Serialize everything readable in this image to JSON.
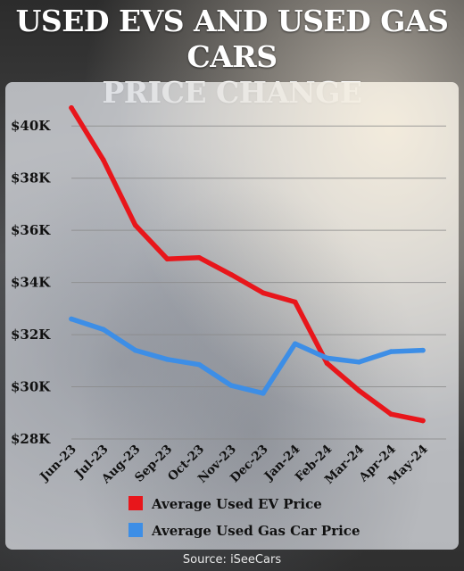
{
  "title": {
    "line1": "USED EVS AND USED GAS CARS",
    "line2": "PRICE CHANGE"
  },
  "source": "Source: iSeeCars",
  "colors": {
    "ev": "#e8161b",
    "gas": "#3d8ee6",
    "grid": "#8a8a8a"
  },
  "chart_data": {
    "type": "line",
    "title": "USED EVS AND USED GAS CARS PRICE CHANGE",
    "xlabel": "",
    "ylabel": "",
    "categories": [
      "Jun-23",
      "Jul-23",
      "Aug-23",
      "Sep-23",
      "Oct-23",
      "Nov-23",
      "Dec-23",
      "Jan-24",
      "Feb-24",
      "Mar-24",
      "Apr-24",
      "May-24"
    ],
    "ylim": [
      28000,
      41000
    ],
    "yticks": [
      28000,
      30000,
      32000,
      34000,
      36000,
      38000,
      40000
    ],
    "ytick_labels": [
      "$28K",
      "$30K",
      "$32K",
      "$34K",
      "$36K",
      "$38K",
      "$40K"
    ],
    "grid": true,
    "legend_position": "bottom",
    "series": [
      {
        "name": "Average Used EV Price",
        "color": "#e8161b",
        "values": [
          40700,
          38700,
          36200,
          34900,
          34950,
          34300,
          33600,
          33250,
          30900,
          29850,
          28950,
          28700
        ]
      },
      {
        "name": "Average Used Gas Car Price",
        "color": "#3d8ee6",
        "values": [
          32600,
          32200,
          31400,
          31050,
          30850,
          30050,
          29750,
          31650,
          31100,
          30950,
          31350,
          31400
        ]
      }
    ]
  }
}
